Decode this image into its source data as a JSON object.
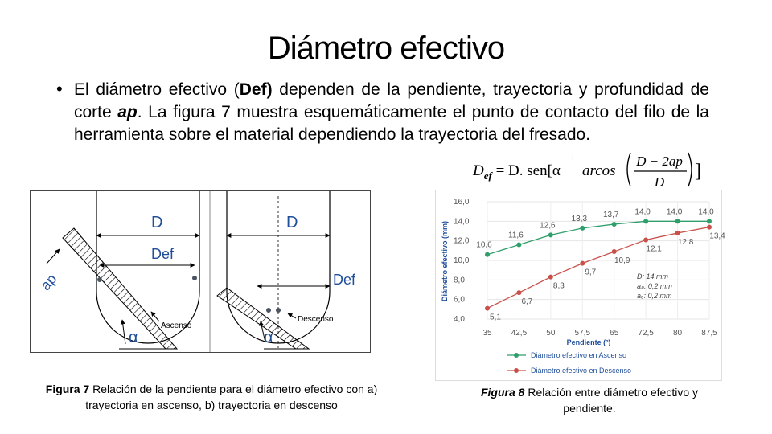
{
  "slide": {
    "title": "Diámetro efectivo",
    "bullet": {
      "t1": "El diámetro efectivo (",
      "t2": "Def)",
      "t3": " dependen de la pendiente, trayectoria y profundidad de corte ",
      "t4": "ap",
      "t5": ". La figura 7 muestra esquemáticamente el punto de contacto del filo de la herramienta sobre el material dependiendo la trayectoria del fresado."
    },
    "formula": {
      "lhs": "D",
      "lhs_sub": "ef",
      "eq": " = D. sen",
      "open": "[α",
      "pm": "±",
      "arcos": "arcos",
      "num": "D − 2ap",
      "den": "D",
      "close": "]"
    }
  },
  "figure7": {
    "left": {
      "d": "D",
      "def": "Def",
      "ap": "ap",
      "alpha": "α",
      "dir": "Ascenso"
    },
    "right": {
      "d": "D",
      "def": "Def",
      "alpha": "α",
      "dir": "Descenso"
    },
    "caption_bold": "Figura 7",
    "caption_rest": " Relación de la pendiente para el diámetro efectivo con a) trayectoria en ascenso, b) trayectoria en descenso"
  },
  "figure8": {
    "caption_bold": "Figura 8",
    "caption_rest": " Relación entre diámetro efectivo y pendiente.",
    "annotation": {
      "l1": "D: 14 mm",
      "l2": "aₚ: 0,2 mm",
      "l3": "aₑ: 0,2 mm"
    }
  },
  "chart_data": {
    "type": "line",
    "title": "",
    "xlabel": "Pendiente (º)",
    "ylabel": "Diámetro efectivo (mm)",
    "x": [
      "35",
      "42,5",
      "50",
      "57,5",
      "65",
      "72,5",
      "80",
      "87,5"
    ],
    "yticks": [
      "4,0",
      "6,0",
      "8,0",
      "10,0",
      "12,0",
      "14,0",
      "16,0"
    ],
    "ylim": [
      4,
      16
    ],
    "legend_position": "bottom",
    "series": [
      {
        "name": "Diámetro efectivo en Ascenso",
        "color": "#2e9e6b",
        "values": [
          10.6,
          11.6,
          12.6,
          13.3,
          13.7,
          14.0,
          14.0,
          14.0
        ],
        "labels": [
          "10,6",
          "11,6",
          "12,6",
          "13,3",
          "13,7",
          "14,0",
          "14,0",
          "14,0"
        ]
      },
      {
        "name": "Diámetro efectivo en Descenso",
        "color": "#c9504a",
        "values": [
          5.1,
          6.7,
          8.3,
          9.7,
          10.9,
          12.1,
          12.8,
          13.4
        ],
        "labels": [
          "5,1",
          "6,7",
          "8,3",
          "9,7",
          "10,9",
          "12,1",
          "12,8",
          "13,4"
        ]
      }
    ]
  }
}
